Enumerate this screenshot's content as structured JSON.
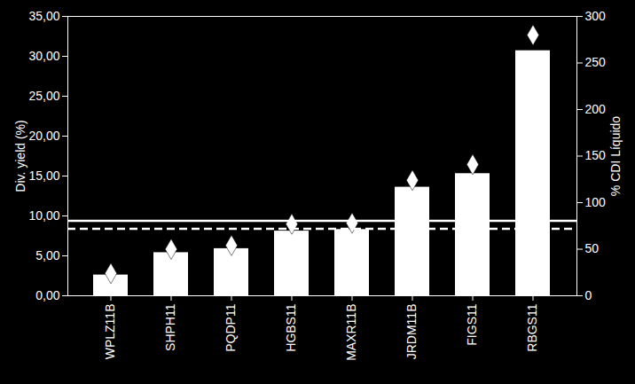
{
  "chart_data": {
    "type": "bar",
    "categories": [
      "WPLZ11B",
      "SHPH11",
      "PQDP11",
      "HGBS11",
      "MAXR11B",
      "JRDM11B",
      "FIGS11",
      "RBGS11"
    ],
    "series": [
      {
        "type": "bar",
        "color": "#ffffff",
        "values": [
          2.6,
          5.4,
          5.9,
          8.1,
          8.3,
          13.6,
          15.3,
          30.7
        ]
      },
      {
        "type": "scatter",
        "marker": "diamond",
        "color": "#ffffff",
        "axis": "y2",
        "values": [
          24,
          50,
          54,
          77,
          78,
          124,
          141,
          280
        ]
      }
    ],
    "ylabel": "Div. yield (%)",
    "y2label": "% CDI Líquido",
    "ylim": [
      0,
      35
    ],
    "yticks": [
      {
        "value": 0,
        "label": "0,00"
      },
      {
        "value": 5,
        "label": "5,00"
      },
      {
        "value": 10,
        "label": "10,00"
      },
      {
        "value": 15,
        "label": "15,00"
      },
      {
        "value": 20,
        "label": "20,00"
      },
      {
        "value": 25,
        "label": "25,00"
      },
      {
        "value": 30,
        "label": "30,00"
      },
      {
        "value": 35,
        "label": "35,00"
      }
    ],
    "y2lim": [
      0,
      300
    ],
    "y2ticks": [
      0,
      50,
      100,
      150,
      200,
      250,
      300
    ],
    "hlines": [
      {
        "value": 9.4,
        "line_style": "solid",
        "color": "#ffffff"
      },
      {
        "value": 8.4,
        "line_style": "dashed",
        "color": "#ffffff"
      }
    ],
    "grid": false
  }
}
